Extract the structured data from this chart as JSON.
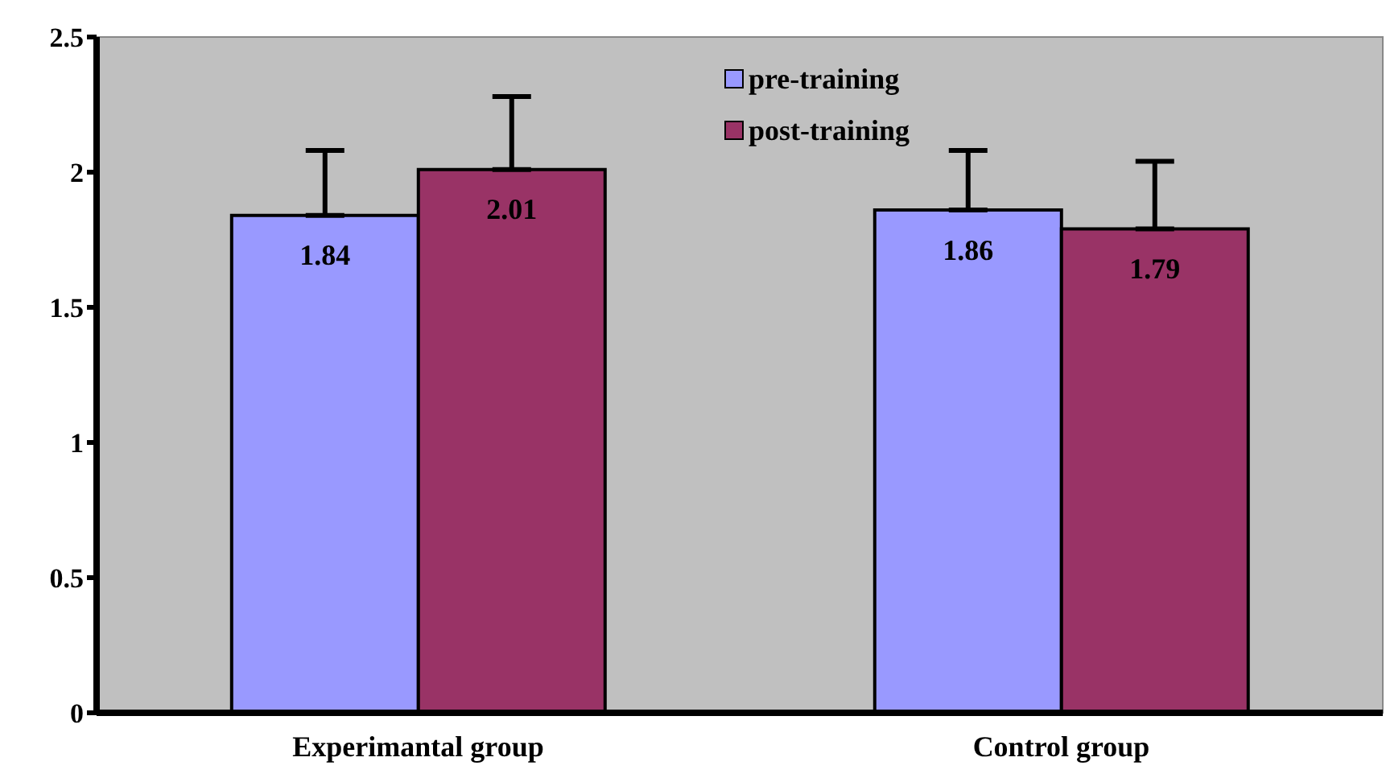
{
  "chart_data": {
    "type": "bar",
    "categories": [
      "Experimantal group",
      "Control group"
    ],
    "series": [
      {
        "name": "pre-training",
        "color": "#9999ff",
        "values": [
          1.84,
          1.86
        ],
        "errors": [
          [
            1.84,
            2.08
          ],
          [
            1.86,
            2.08
          ]
        ]
      },
      {
        "name": "post-training",
        "color": "#993366",
        "values": [
          2.01,
          1.79
        ],
        "errors": [
          [
            2.01,
            2.28
          ],
          [
            1.79,
            2.04
          ]
        ]
      }
    ],
    "ylim": [
      0,
      2.5
    ],
    "yticks": [
      0,
      0.5,
      1,
      1.5,
      2,
      2.5
    ],
    "legend": "top",
    "data_labels": true
  }
}
